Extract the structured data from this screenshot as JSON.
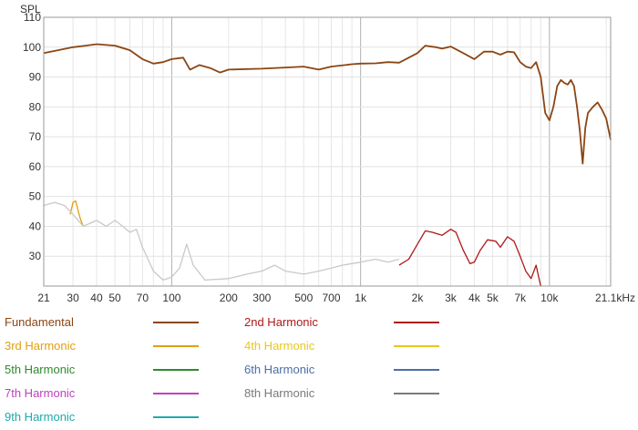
{
  "chart_data": {
    "type": "line",
    "x_scale": "log",
    "xlim": [
      21,
      21100
    ],
    "ylim": [
      20,
      110
    ],
    "ylabel": "SPL",
    "xlabel": "",
    "grid": true,
    "y_ticks": [
      30,
      40,
      50,
      60,
      70,
      80,
      90,
      100,
      110
    ],
    "x_ticks": [
      {
        "value": 21,
        "label": "21"
      },
      {
        "value": 30,
        "label": "30"
      },
      {
        "value": 40,
        "label": "40"
      },
      {
        "value": 50,
        "label": "50"
      },
      {
        "value": 70,
        "label": "70"
      },
      {
        "value": 100,
        "label": "100"
      },
      {
        "value": 200,
        "label": "200"
      },
      {
        "value": 300,
        "label": "300"
      },
      {
        "value": 500,
        "label": "500"
      },
      {
        "value": 700,
        "label": "700"
      },
      {
        "value": 1000,
        "label": "1k"
      },
      {
        "value": 2000,
        "label": "2k"
      },
      {
        "value": 3000,
        "label": "3k"
      },
      {
        "value": 4000,
        "label": "4k"
      },
      {
        "value": 5000,
        "label": "5k"
      },
      {
        "value": 7000,
        "label": "7k"
      },
      {
        "value": 10000,
        "label": "10k"
      },
      {
        "value": 21100,
        "label": "21.1kHz"
      }
    ],
    "series": [
      {
        "name": "Fundamental",
        "color": "#8B4513",
        "points": [
          [
            21,
            98
          ],
          [
            25,
            99
          ],
          [
            30,
            100
          ],
          [
            35,
            100.5
          ],
          [
            40,
            101
          ],
          [
            50,
            100.5
          ],
          [
            60,
            99
          ],
          [
            70,
            96
          ],
          [
            80,
            94.5
          ],
          [
            90,
            95
          ],
          [
            100,
            96
          ],
          [
            115,
            96.5
          ],
          [
            125,
            92.5
          ],
          [
            140,
            94
          ],
          [
            160,
            93
          ],
          [
            180,
            91.5
          ],
          [
            200,
            92.5
          ],
          [
            300,
            92.8
          ],
          [
            400,
            93.2
          ],
          [
            500,
            93.5
          ],
          [
            600,
            92.5
          ],
          [
            700,
            93.5
          ],
          [
            900,
            94.3
          ],
          [
            1000,
            94.5
          ],
          [
            1200,
            94.6
          ],
          [
            1400,
            95
          ],
          [
            1600,
            94.8
          ],
          [
            2000,
            98
          ],
          [
            2200,
            100.5
          ],
          [
            2500,
            100
          ],
          [
            2700,
            99.5
          ],
          [
            3000,
            100.2
          ],
          [
            3500,
            98
          ],
          [
            4000,
            96
          ],
          [
            4500,
            98.5
          ],
          [
            5000,
            98.5
          ],
          [
            5500,
            97.5
          ],
          [
            6000,
            98.5
          ],
          [
            6500,
            98.3
          ],
          [
            7000,
            95
          ],
          [
            7500,
            93.5
          ],
          [
            8000,
            93
          ],
          [
            8500,
            95
          ],
          [
            9000,
            90
          ],
          [
            9500,
            78
          ],
          [
            10000,
            75.5
          ],
          [
            10500,
            80
          ],
          [
            11000,
            87
          ],
          [
            11500,
            89
          ],
          [
            12000,
            88
          ],
          [
            12500,
            87.5
          ],
          [
            13000,
            89
          ],
          [
            13500,
            87
          ],
          [
            14000,
            80
          ],
          [
            14500,
            72
          ],
          [
            15000,
            61
          ],
          [
            15500,
            73
          ],
          [
            16000,
            78
          ],
          [
            17000,
            80
          ],
          [
            18000,
            81.5
          ],
          [
            19000,
            79
          ],
          [
            20000,
            76
          ],
          [
            21100,
            69
          ]
        ]
      },
      {
        "name": "2nd Harmonic",
        "color": "#B01818",
        "points": [
          [
            1600,
            27
          ],
          [
            1800,
            29
          ],
          [
            2000,
            34
          ],
          [
            2200,
            38.5
          ],
          [
            2400,
            38
          ],
          [
            2700,
            37
          ],
          [
            3000,
            39
          ],
          [
            3200,
            38
          ],
          [
            3500,
            32
          ],
          [
            3800,
            27.5
          ],
          [
            4000,
            28
          ],
          [
            4300,
            32
          ],
          [
            4700,
            35.5
          ],
          [
            5200,
            35
          ],
          [
            5500,
            33
          ],
          [
            6000,
            36.5
          ],
          [
            6500,
            35
          ],
          [
            7000,
            30
          ],
          [
            7500,
            25
          ],
          [
            8000,
            22.5
          ],
          [
            8500,
            27
          ],
          [
            8700,
            24
          ],
          [
            9000,
            20
          ]
        ]
      },
      {
        "name": "3rd Harmonic",
        "color": "#E0A010",
        "points": [
          [
            29,
            44
          ],
          [
            30,
            48
          ],
          [
            31,
            48.5
          ],
          [
            32,
            45
          ],
          [
            33,
            42
          ],
          [
            34,
            40
          ]
        ]
      },
      {
        "name": "4th Harmonic",
        "color": "#E8C81A",
        "points": []
      },
      {
        "name": "5th Harmonic",
        "color": "#2E8B2E",
        "points": []
      },
      {
        "name": "6th Harmonic",
        "color": "#4A6FA5",
        "points": []
      },
      {
        "name": "7th Harmonic",
        "color": "#C040C0",
        "points": []
      },
      {
        "name": "8th Harmonic",
        "color": "#7A7A7A",
        "points": [
          [
            21,
            47
          ],
          [
            24,
            48
          ],
          [
            27,
            47
          ],
          [
            30,
            44
          ],
          [
            34,
            40
          ],
          [
            40,
            42
          ],
          [
            45,
            40
          ],
          [
            50,
            42
          ],
          [
            55,
            40
          ],
          [
            60,
            38
          ],
          [
            65,
            39
          ],
          [
            70,
            33
          ],
          [
            80,
            25
          ],
          [
            90,
            22
          ],
          [
            100,
            23
          ],
          [
            110,
            26
          ],
          [
            120,
            34
          ],
          [
            130,
            27
          ],
          [
            150,
            22
          ],
          [
            200,
            22.5
          ],
          [
            250,
            24
          ],
          [
            300,
            25
          ],
          [
            350,
            27
          ],
          [
            400,
            25
          ],
          [
            500,
            24
          ],
          [
            600,
            25
          ],
          [
            700,
            26
          ],
          [
            800,
            27
          ],
          [
            1000,
            28
          ],
          [
            1200,
            29
          ],
          [
            1400,
            28
          ],
          [
            1600,
            29
          ]
        ]
      },
      {
        "name": "9th Harmonic",
        "color": "#20A8A8",
        "points": []
      }
    ],
    "legend": [
      {
        "name": "Fundamental",
        "color": "#8B4513"
      },
      {
        "name": "2nd Harmonic",
        "color": "#B01818"
      },
      {
        "name": "3rd Harmonic",
        "color": "#E0A010"
      },
      {
        "name": "4th Harmonic",
        "color": "#E8C81A"
      },
      {
        "name": "5th Harmonic",
        "color": "#2E8B2E"
      },
      {
        "name": "6th Harmonic",
        "color": "#4A6FA5"
      },
      {
        "name": "7th Harmonic",
        "color": "#C040C0"
      },
      {
        "name": "8th Harmonic",
        "color": "#7A7A7A"
      },
      {
        "name": "9th Harmonic",
        "color": "#20A8A8"
      }
    ]
  }
}
